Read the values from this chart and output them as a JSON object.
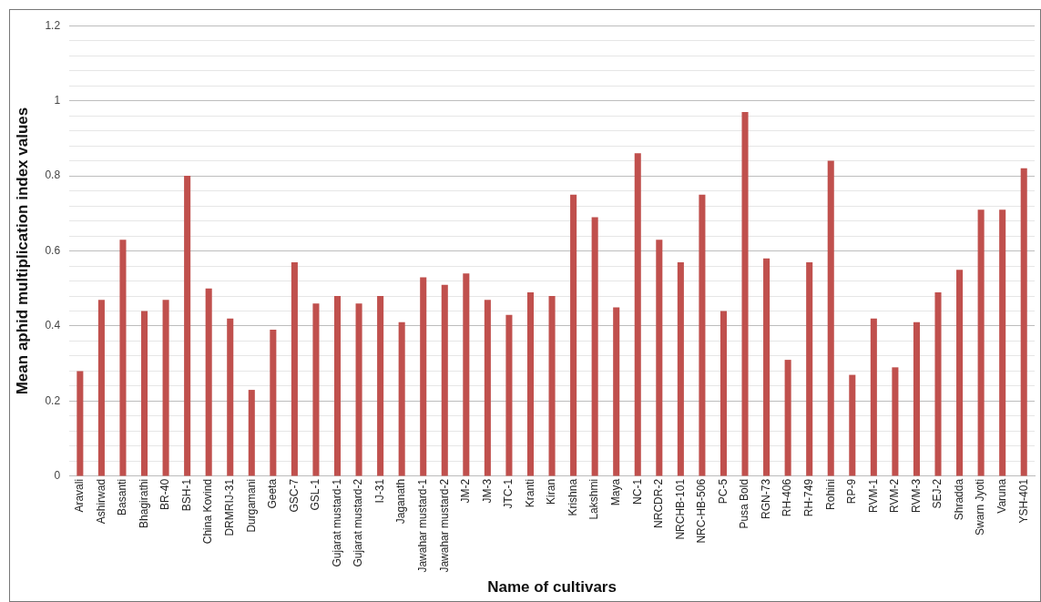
{
  "chart_data": {
    "type": "bar",
    "xlabel": "Name of cultivars",
    "ylabel": "Mean aphid multiplication index values",
    "categories": [
      "Aravali",
      "Ashirwad",
      "Basanti",
      "Bhagirathi",
      "BR-40",
      "BSH-1",
      "China Kovind",
      "DRMRIJ-31",
      "Durgamani",
      "Geeta",
      "GSC-7",
      "GSL-1",
      "Gujarat mustard-1",
      "Gujarat mustard-2",
      "IJ-31",
      "Jaganath",
      "Jawahar mustard-1",
      "Jawahar mustard-2",
      "JM-2",
      "JM-3",
      "JTC-1",
      "Kranti",
      "Kiran",
      "Krishna",
      "Lakshmi",
      "Maya",
      "NC-1",
      "NRCDR-2",
      "NRCHB-101",
      "NRC-HB-506",
      "PC-5",
      "Pusa Bold",
      "RGN-73",
      "RH-406",
      "RH-749",
      "Rohini",
      "RP-9",
      "RVM-1",
      "RVM-2",
      "RVM-3",
      "SEJ-2",
      "Shradda",
      "Swarn Jyoti",
      "Varuna",
      "YSH-401"
    ],
    "values": [
      0.28,
      0.47,
      0.63,
      0.44,
      0.47,
      0.8,
      0.5,
      0.42,
      0.23,
      0.39,
      0.57,
      0.46,
      0.48,
      0.46,
      0.48,
      0.41,
      0.53,
      0.51,
      0.54,
      0.47,
      0.43,
      0.49,
      0.48,
      0.75,
      0.69,
      0.45,
      0.86,
      0.63,
      0.57,
      0.75,
      0.44,
      0.97,
      0.58,
      0.31,
      0.57,
      0.84,
      0.27,
      0.42,
      0.29,
      0.41,
      0.49,
      0.55,
      0.71,
      0.71,
      0.82
    ],
    "color": "#c0504d",
    "ylim": [
      0,
      1.2
    ],
    "yticks": [
      0,
      {
        "value": 0.04,
        "label": null
      },
      {
        "value": 0.08,
        "label": null
      },
      {
        "value": 0.12,
        "label": null
      },
      {
        "value": 0.16,
        "label": null
      },
      0.2,
      {
        "value": 0.24,
        "label": null
      },
      {
        "value": 0.28,
        "label": null
      },
      {
        "value": 0.32,
        "label": null
      },
      {
        "value": 0.36,
        "label": null
      },
      0.4,
      {
        "value": 0.44,
        "label": null
      },
      {
        "value": 0.48,
        "label": null
      },
      {
        "value": 0.52,
        "label": null
      },
      {
        "value": 0.56,
        "label": null
      },
      0.6,
      {
        "value": 0.64,
        "label": null
      },
      {
        "value": 0.68,
        "label": null
      },
      {
        "value": 0.72,
        "label": null
      },
      {
        "value": 0.76,
        "label": null
      },
      0.8,
      {
        "value": 0.84,
        "label": null
      },
      {
        "value": 0.88,
        "label": null
      },
      {
        "value": 0.92,
        "label": null
      },
      {
        "value": 0.96,
        "label": null
      },
      1,
      {
        "value": 1.04,
        "label": null
      },
      {
        "value": 1.08,
        "label": null
      },
      {
        "value": 1.12,
        "label": null
      },
      {
        "value": 1.16,
        "label": null
      },
      1.2
    ],
    "grid": "y",
    "legend": false
  }
}
